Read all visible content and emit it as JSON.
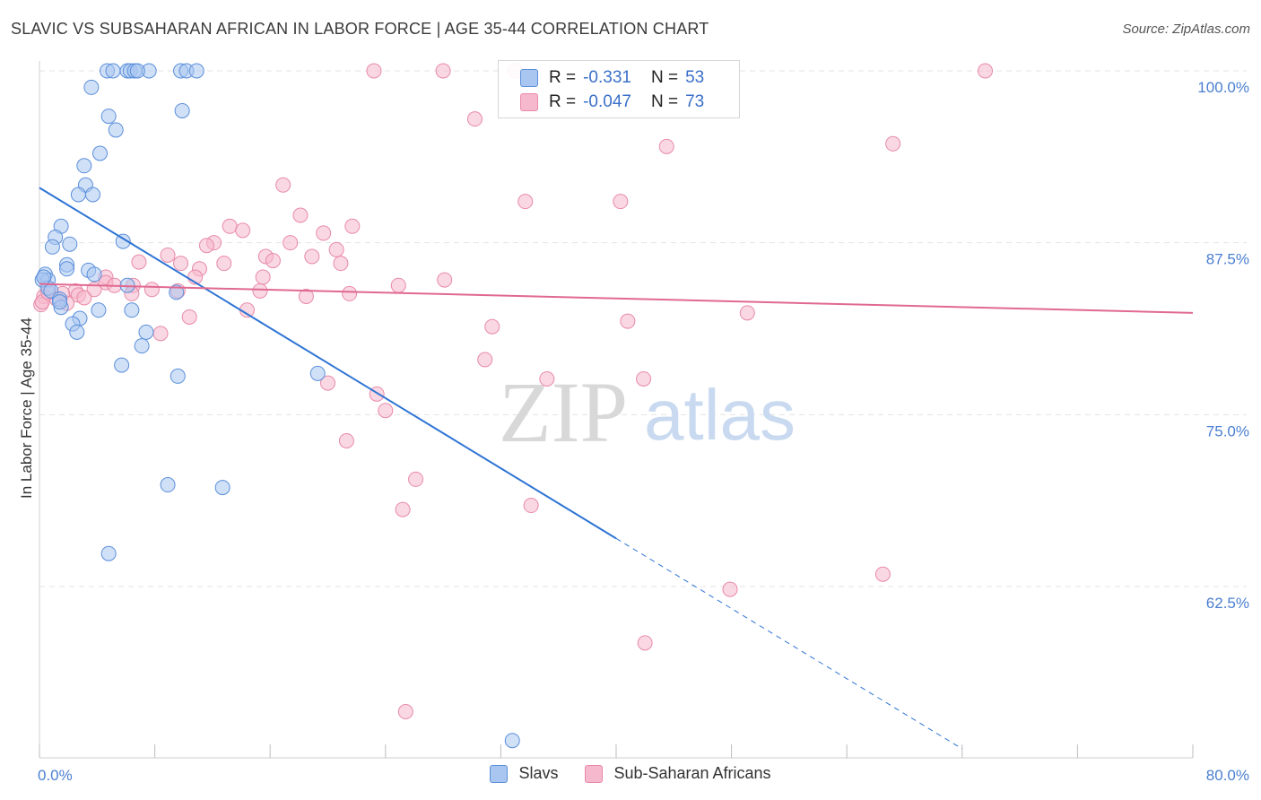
{
  "title": "SLAVIC VS SUBSAHARAN AFRICAN IN LABOR FORCE | AGE 35-44 CORRELATION CHART",
  "source": "Source: ZipAtlas.com",
  "watermark": {
    "zip": "ZIP",
    "atlas": "atlas"
  },
  "legend": {
    "rows": [
      {
        "r_label": "R =",
        "r_value": "-0.331",
        "n_label": "N =",
        "n_value": "53"
      },
      {
        "r_label": "R =",
        "r_value": "-0.047",
        "n_label": "N =",
        "n_value": "73"
      }
    ],
    "series": [
      "Slavs",
      "Sub-Saharan Africans"
    ]
  },
  "colors": {
    "slavs_fill": "#a9c6f0",
    "slavs_stroke": "#5b8fdb",
    "slavs_line": "#2e74d4",
    "ssa_fill": "#f6b8cc",
    "ssa_stroke": "#e88aa8",
    "ssa_line": "#e06990",
    "tick_text": "#4a7fd0",
    "grid": "#e3e3e3"
  },
  "chart_data": {
    "type": "scatter",
    "title": "SLAVIC VS SUBSAHARAN AFRICAN IN LABOR FORCE | AGE 35-44 CORRELATION CHART",
    "xlabel": "",
    "ylabel": "In Labor Force | Age 35-44",
    "xlim": [
      0,
      80
    ],
    "ylim": [
      50,
      101
    ],
    "x_tick_labels": [
      "0.0%",
      "80.0%"
    ],
    "y_ticks": [
      62.5,
      75.0,
      87.5,
      100.0
    ],
    "y_tick_labels": [
      "62.5%",
      "75.0%",
      "87.5%",
      "100.0%"
    ],
    "grid": true,
    "series": [
      {
        "name": "Slavs",
        "r": -0.331,
        "n": 53,
        "trend": {
          "x0": 0,
          "y0": 91.5,
          "x1": 40,
          "y1": 66.0,
          "dash_to_x": 64
        },
        "points": [
          [
            4.7,
            100
          ],
          [
            5.1,
            100
          ],
          [
            6.1,
            100
          ],
          [
            6.3,
            100
          ],
          [
            6.6,
            100
          ],
          [
            7.6,
            100
          ],
          [
            9.8,
            100
          ],
          [
            10.2,
            100
          ],
          [
            10.9,
            100
          ],
          [
            6.8,
            100
          ],
          [
            3.6,
            98.8
          ],
          [
            4.8,
            96.7
          ],
          [
            5.3,
            95.7
          ],
          [
            9.9,
            97.1
          ],
          [
            4.2,
            94.0
          ],
          [
            3.1,
            93.1
          ],
          [
            3.2,
            91.7
          ],
          [
            2.7,
            91.0
          ],
          [
            3.7,
            91.0
          ],
          [
            1.5,
            88.7
          ],
          [
            1.1,
            87.9
          ],
          [
            0.9,
            87.2
          ],
          [
            2.1,
            87.4
          ],
          [
            5.8,
            87.6
          ],
          [
            1.9,
            85.9
          ],
          [
            3.4,
            85.5
          ],
          [
            1.9,
            85.6
          ],
          [
            0.4,
            85.2
          ],
          [
            0.6,
            84.8
          ],
          [
            0.2,
            84.8
          ],
          [
            3.8,
            85.2
          ],
          [
            6.1,
            84.4
          ],
          [
            0.6,
            84.2
          ],
          [
            0.8,
            84.0
          ],
          [
            1.4,
            83.4
          ],
          [
            1.5,
            82.8
          ],
          [
            4.1,
            82.6
          ],
          [
            6.4,
            82.6
          ],
          [
            2.8,
            82.0
          ],
          [
            2.3,
            81.6
          ],
          [
            2.6,
            81.0
          ],
          [
            7.4,
            81.0
          ],
          [
            7.1,
            80.0
          ],
          [
            5.7,
            78.6
          ],
          [
            9.6,
            77.8
          ],
          [
            9.5,
            83.9
          ],
          [
            19.3,
            78.0
          ],
          [
            8.9,
            69.9
          ],
          [
            12.7,
            69.7
          ],
          [
            4.8,
            64.9
          ],
          [
            32.8,
            51.3
          ],
          [
            1.4,
            83.2
          ],
          [
            0.3,
            85.0
          ]
        ]
      },
      {
        "name": "Sub-Saharan Africans",
        "r": -0.047,
        "n": 73,
        "trend": {
          "x0": 0,
          "y0": 84.5,
          "x1": 80,
          "y1": 82.4
        },
        "points": [
          [
            23.2,
            100
          ],
          [
            28.0,
            100
          ],
          [
            33.0,
            100
          ],
          [
            65.6,
            100
          ],
          [
            30.2,
            96.5
          ],
          [
            43.5,
            94.5
          ],
          [
            59.2,
            94.7
          ],
          [
            16.9,
            91.7
          ],
          [
            33.7,
            90.5
          ],
          [
            40.3,
            90.5
          ],
          [
            18.1,
            89.5
          ],
          [
            21.7,
            88.7
          ],
          [
            13.2,
            88.7
          ],
          [
            14.1,
            88.4
          ],
          [
            19.7,
            88.2
          ],
          [
            12.1,
            87.5
          ],
          [
            11.6,
            87.3
          ],
          [
            17.4,
            87.5
          ],
          [
            20.6,
            87.0
          ],
          [
            8.9,
            86.6
          ],
          [
            15.7,
            86.5
          ],
          [
            18.9,
            86.5
          ],
          [
            16.2,
            86.2
          ],
          [
            9.8,
            86.0
          ],
          [
            12.8,
            86.0
          ],
          [
            20.9,
            86.0
          ],
          [
            6.9,
            86.1
          ],
          [
            11.1,
            85.6
          ],
          [
            10.8,
            85.0
          ],
          [
            4.6,
            85.0
          ],
          [
            15.5,
            85.0
          ],
          [
            28.1,
            84.8
          ],
          [
            4.6,
            84.6
          ],
          [
            5.2,
            84.4
          ],
          [
            6.5,
            84.4
          ],
          [
            24.9,
            84.4
          ],
          [
            7.8,
            84.1
          ],
          [
            3.8,
            84.1
          ],
          [
            2.5,
            84.0
          ],
          [
            15.3,
            84.0
          ],
          [
            9.6,
            84.0
          ],
          [
            1.6,
            83.8
          ],
          [
            2.7,
            83.7
          ],
          [
            18.5,
            83.6
          ],
          [
            21.5,
            83.8
          ],
          [
            3.1,
            83.5
          ],
          [
            1.2,
            83.4
          ],
          [
            0.3,
            83.6
          ],
          [
            6.4,
            83.8
          ],
          [
            0.1,
            83.0
          ],
          [
            14.4,
            82.6
          ],
          [
            10.4,
            82.1
          ],
          [
            40.8,
            81.8
          ],
          [
            49.1,
            82.4
          ],
          [
            31.4,
            81.4
          ],
          [
            8.4,
            80.9
          ],
          [
            30.9,
            79.0
          ],
          [
            35.2,
            77.6
          ],
          [
            41.9,
            77.6
          ],
          [
            20.0,
            77.3
          ],
          [
            23.4,
            76.5
          ],
          [
            24.0,
            75.3
          ],
          [
            21.3,
            73.1
          ],
          [
            26.1,
            70.3
          ],
          [
            34.1,
            68.4
          ],
          [
            25.2,
            68.1
          ],
          [
            58.5,
            63.4
          ],
          [
            47.9,
            62.3
          ],
          [
            42.0,
            58.4
          ],
          [
            25.4,
            53.4
          ],
          [
            0.2,
            83.2
          ],
          [
            0.6,
            83.9
          ],
          [
            1.9,
            83.1
          ]
        ]
      }
    ]
  }
}
